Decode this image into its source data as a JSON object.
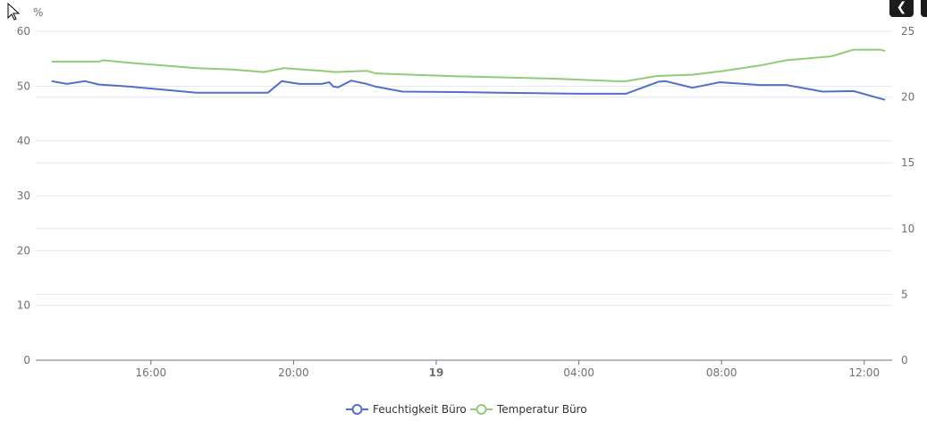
{
  "toolbar": {
    "back_icon": "chevron-left-icon",
    "menu_icon": "menu-icon"
  },
  "chart_data": {
    "type": "line",
    "left_axis": {
      "label": "%",
      "min": 0,
      "max": 60,
      "ticks": [
        "0",
        "10",
        "20",
        "30",
        "40",
        "50",
        "60"
      ]
    },
    "right_axis": {
      "min": 0,
      "max": 25,
      "ticks": [
        "0",
        "5",
        "10",
        "15",
        "20",
        "25"
      ]
    },
    "x_axis": {
      "ticks": [
        {
          "t": "18 16:00",
          "label": "16:00",
          "bold": false
        },
        {
          "t": "18 20:00",
          "label": "20:00",
          "bold": false
        },
        {
          "t": "19 00:00",
          "label": "19",
          "bold": true
        },
        {
          "t": "19 04:00",
          "label": "04:00",
          "bold": false
        },
        {
          "t": "19 08:00",
          "label": "08:00",
          "bold": false
        },
        {
          "t": "19 12:00",
          "label": "12:00",
          "bold": false
        }
      ]
    },
    "grid": true,
    "legend_position": "bottom",
    "series": [
      {
        "name": "Feuchtigkeit Büro",
        "axis": "left",
        "color": "#5470c6",
        "points": [
          [
            "18 13:13",
            50.9
          ],
          [
            "18 13:39",
            50.4
          ],
          [
            "18 14:09",
            50.9
          ],
          [
            "18 14:32",
            50.3
          ],
          [
            "18 15:24",
            49.9
          ],
          [
            "18 17:17",
            48.8
          ],
          [
            "18 18:17",
            48.8
          ],
          [
            "18 19:17",
            48.8
          ],
          [
            "18 19:40",
            50.9
          ],
          [
            "18 20:10",
            50.4
          ],
          [
            "18 20:47",
            50.4
          ],
          [
            "18 21:00",
            50.7
          ],
          [
            "18 21:07",
            49.9
          ],
          [
            "18 21:15",
            49.8
          ],
          [
            "18 21:37",
            51.0
          ],
          [
            "18 22:03",
            50.4
          ],
          [
            "18 22:18",
            49.9
          ],
          [
            "18 23:03",
            49.0
          ],
          [
            "19 00:48",
            48.9
          ],
          [
            "19 01:48",
            48.8
          ],
          [
            "19 02:48",
            48.7
          ],
          [
            "19 04:04",
            48.6
          ],
          [
            "19 05:19",
            48.6
          ],
          [
            "19 06:14",
            50.8
          ],
          [
            "19 06:26",
            50.9
          ],
          [
            "19 07:11",
            49.7
          ],
          [
            "19 07:57",
            50.7
          ],
          [
            "19 09:04",
            50.2
          ],
          [
            "19 09:49",
            50.2
          ],
          [
            "19 10:50",
            49.0
          ],
          [
            "19 11:42",
            49.1
          ],
          [
            "19 12:35",
            47.5
          ]
        ]
      },
      {
        "name": "Temperatur Büro",
        "axis": "right",
        "color": "#91cc75",
        "points": [
          [
            "18 13:13",
            22.7
          ],
          [
            "18 14:32",
            22.7
          ],
          [
            "18 14:40",
            22.8
          ],
          [
            "18 15:24",
            22.6
          ],
          [
            "18 17:17",
            22.2
          ],
          [
            "18 18:17",
            22.1
          ],
          [
            "18 19:10",
            21.9
          ],
          [
            "18 19:44",
            22.2
          ],
          [
            "18 20:47",
            22.0
          ],
          [
            "18 21:10",
            21.9
          ],
          [
            "18 22:03",
            22.0
          ],
          [
            "18 22:18",
            21.8
          ],
          [
            "19 00:18",
            21.6
          ],
          [
            "19 01:48",
            21.5
          ],
          [
            "19 03:19",
            21.4
          ],
          [
            "19 05:04",
            21.2
          ],
          [
            "19 05:19",
            21.2
          ],
          [
            "19 06:11",
            21.6
          ],
          [
            "19 07:11",
            21.7
          ],
          [
            "19 08:04",
            22.0
          ],
          [
            "19 09:04",
            22.4
          ],
          [
            "19 09:49",
            22.8
          ],
          [
            "19 11:05",
            23.1
          ],
          [
            "19 11:42",
            23.6
          ],
          [
            "19 12:27",
            23.6
          ],
          [
            "19 12:35",
            23.5
          ]
        ]
      }
    ]
  }
}
